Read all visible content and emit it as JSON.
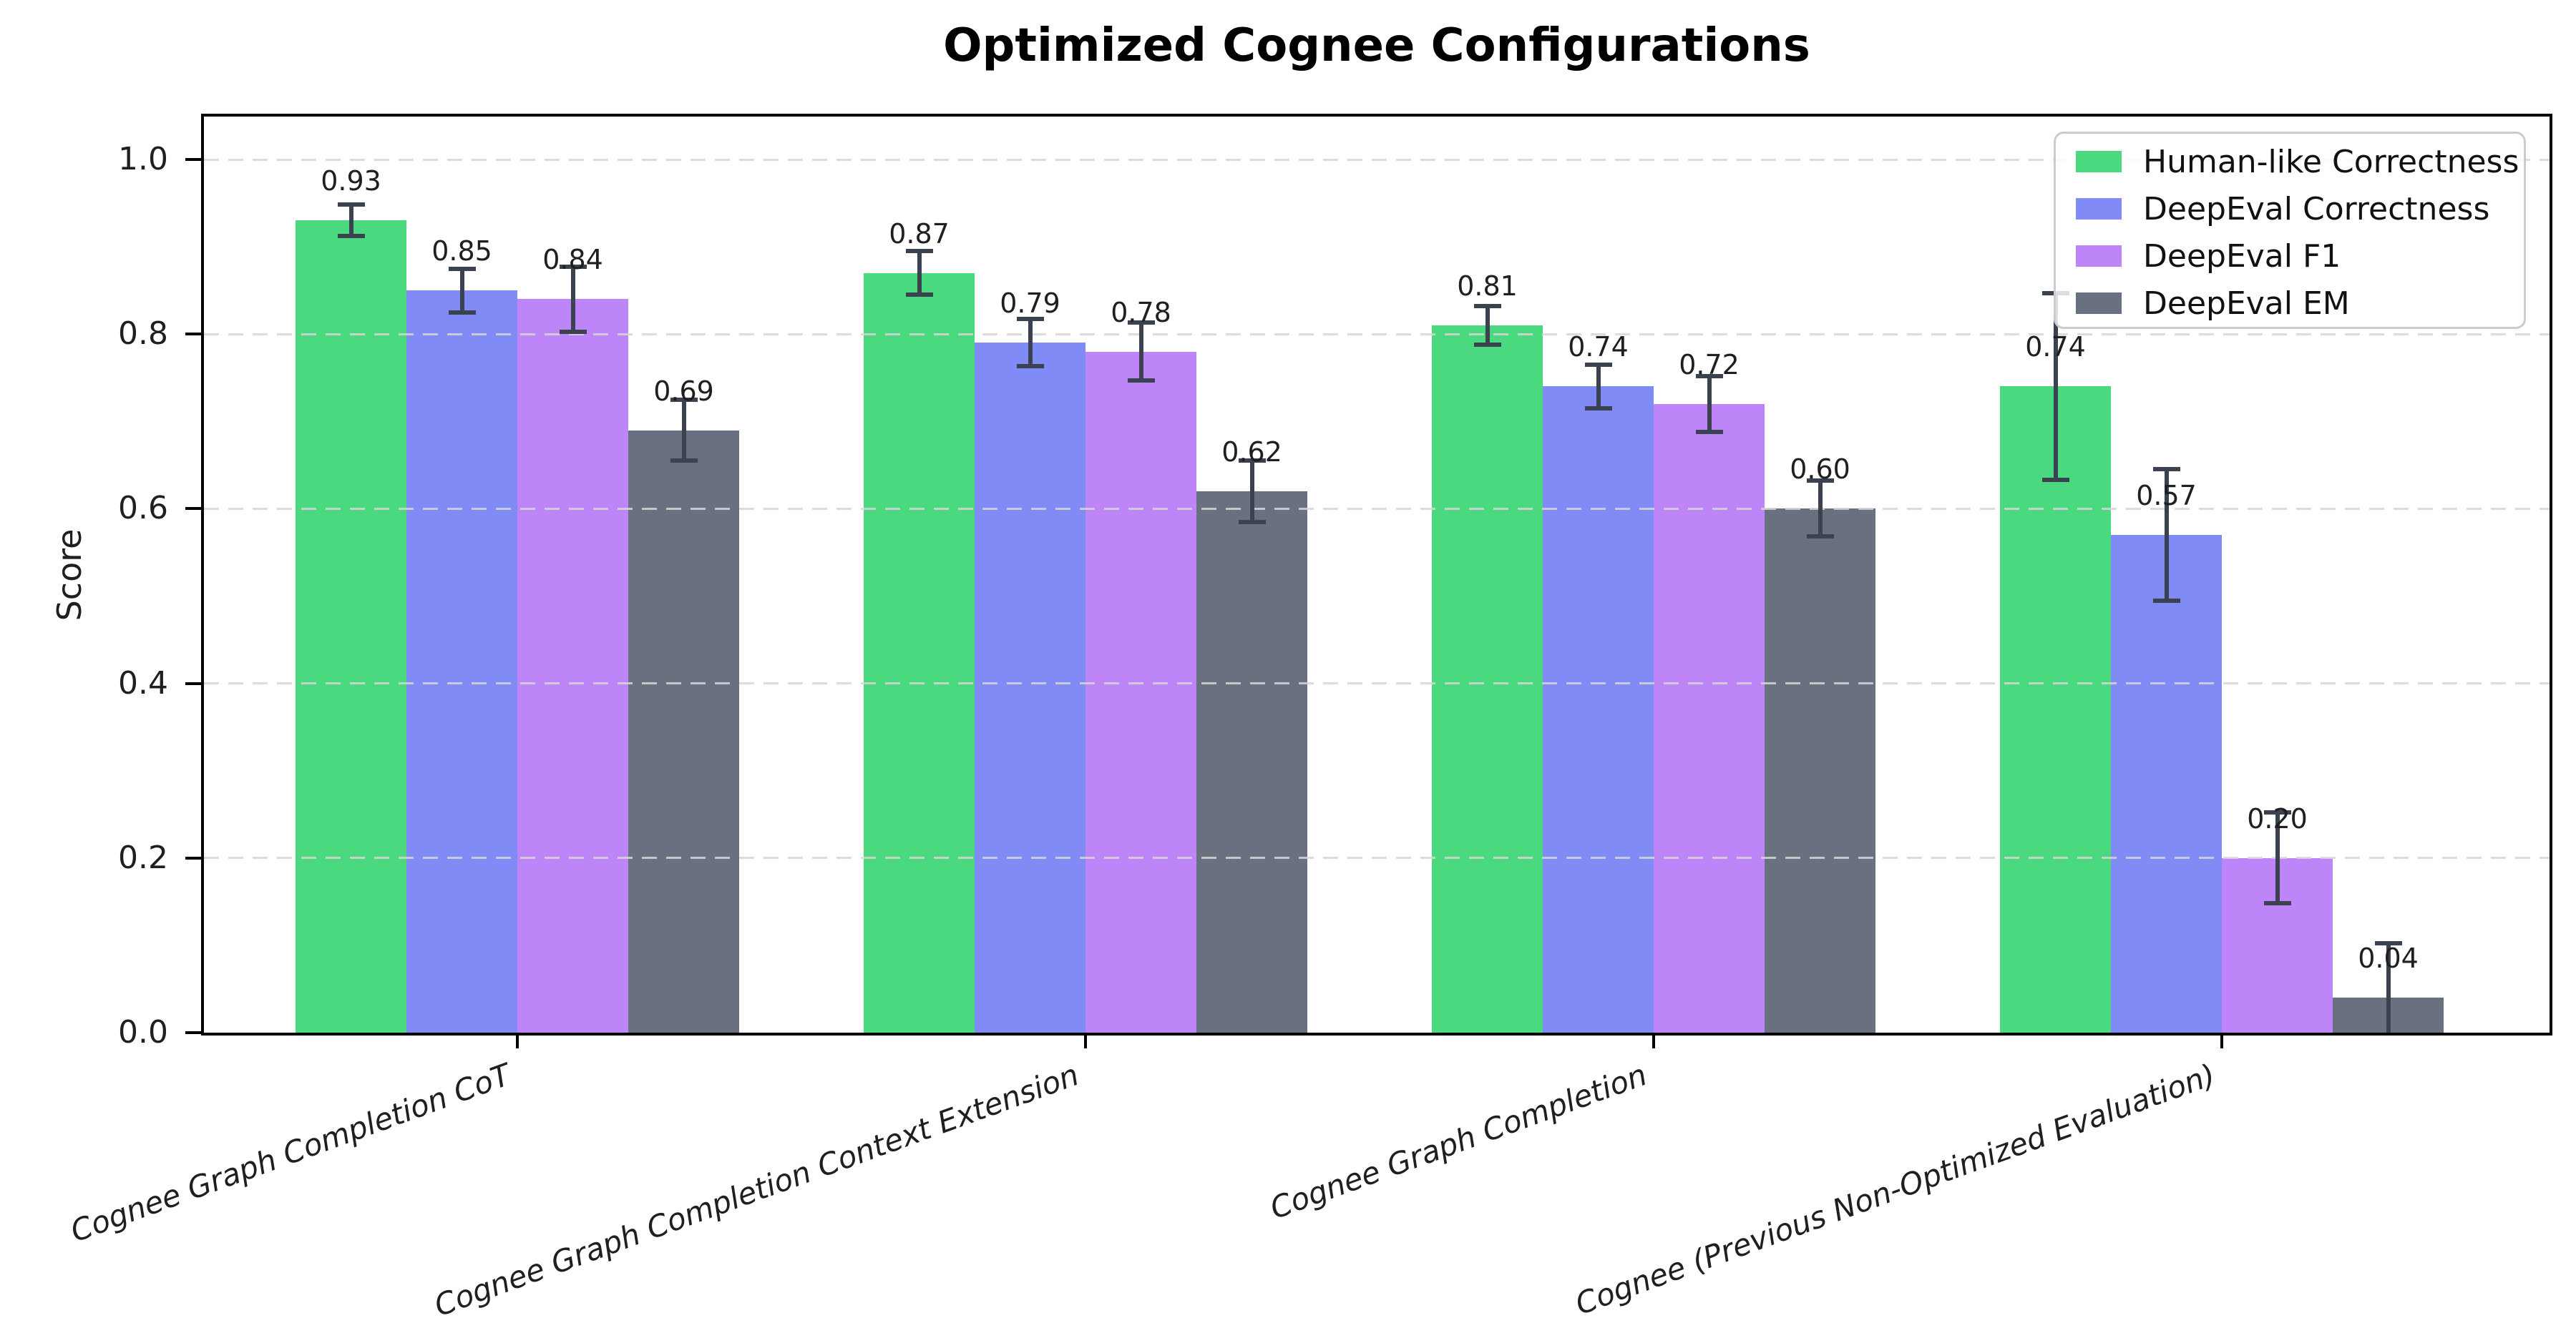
{
  "chart_data": {
    "type": "bar",
    "title": "Optimized Cognee Configurations",
    "ylabel": "Score",
    "ylim": [
      0,
      1.05
    ],
    "yticks": [
      0.0,
      0.2,
      0.4,
      0.6,
      0.8,
      1.0
    ],
    "grid": "horizontal dashed",
    "legend_position": "upper right",
    "categories": [
      "Cognee Graph Completion CoT",
      "Cognee Graph Completion Context Extension",
      "Cognee Graph Completion",
      "Cognee (Previous Non-Optimized Evaluation)"
    ],
    "series": [
      {
        "name": "Human-like Correctness",
        "color": "#4ad97e",
        "values": [
          0.93,
          0.87,
          0.81,
          0.74
        ],
        "errors": [
          0.018,
          0.025,
          0.022,
          0.107
        ]
      },
      {
        "name": "DeepEval Correctness",
        "color": "#818bf6",
        "values": [
          0.85,
          0.79,
          0.74,
          0.57
        ],
        "errors": [
          0.025,
          0.027,
          0.025,
          0.075
        ]
      },
      {
        "name": "DeepEval F1",
        "color": "#be85f8",
        "values": [
          0.84,
          0.78,
          0.72,
          0.2
        ],
        "errors": [
          0.037,
          0.033,
          0.032,
          0.052
        ]
      },
      {
        "name": "DeepEval EM",
        "color": "#697080",
        "values": [
          0.69,
          0.62,
          0.6,
          0.04
        ],
        "errors": [
          0.035,
          0.035,
          0.032,
          0.062
        ]
      }
    ],
    "styles": {
      "error_color": "#3a4250",
      "grid_color": "#d6d6d6",
      "spine_color": "#000000",
      "text_color": "#1f1f1f",
      "legend_border": "#cccccc",
      "background": "#ffffff"
    }
  }
}
